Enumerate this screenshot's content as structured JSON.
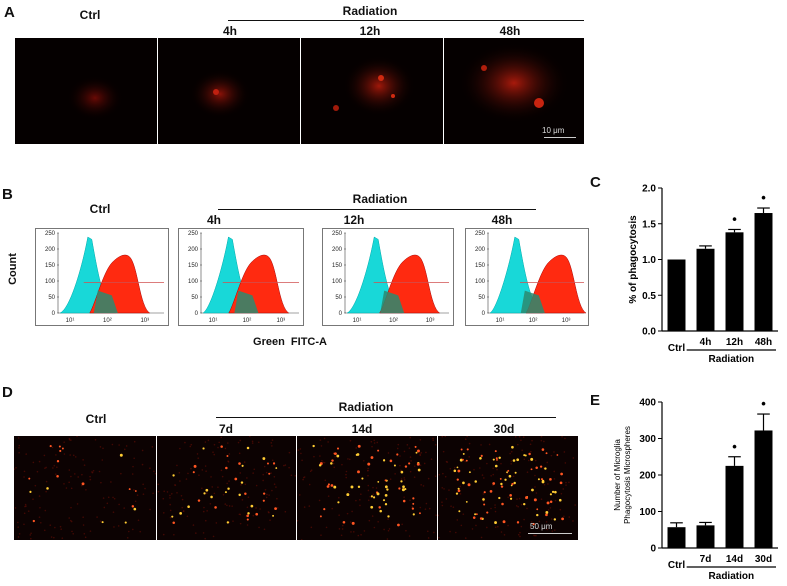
{
  "panel_A": {
    "label": "A",
    "group_label": "Radiation",
    "ctrl_label": "Ctrl",
    "timepoints": [
      "4h",
      "12h",
      "48h"
    ],
    "scale_label": "10 μm"
  },
  "panel_B": {
    "label": "B",
    "group_label": "Radiation",
    "ctrl_label": "Ctrl",
    "timepoints": [
      "4h",
      "12h",
      "48h"
    ],
    "y_label": "Count",
    "x_label": "Green  FITC-A",
    "y_ticks": [
      "250",
      "200",
      "150",
      "100",
      "50",
      "0"
    ],
    "x_ticks": [
      "10¹",
      "10²",
      "10³"
    ],
    "colors": {
      "control_histogram": "#18d8d8",
      "treated_histogram": "#ff2a10"
    }
  },
  "panel_D": {
    "label": "D",
    "group_label": "Radiation",
    "ctrl_label": "Ctrl",
    "timepoints": [
      "7d",
      "14d",
      "30d"
    ],
    "scale_label": "50 μm"
  },
  "chart_data": [
    {
      "panel": "C",
      "type": "bar",
      "categories": [
        "Ctrl",
        "4h",
        "12h",
        "48h"
      ],
      "values": [
        1.0,
        1.15,
        1.38,
        1.65
      ],
      "errors": [
        0.0,
        0.04,
        0.04,
        0.07
      ],
      "significant": [
        false,
        false,
        true,
        true
      ],
      "marker": "•",
      "ylabel": "% of phagocytosis",
      "group_label": "Radiation",
      "ylim": [
        0,
        2.0
      ],
      "yticks": [
        "0.0",
        "0.5",
        "1.0",
        "1.5",
        "2.0"
      ],
      "bar_color": "#000000"
    },
    {
      "panel": "E",
      "type": "bar",
      "categories": [
        "Ctrl",
        "7d",
        "14d",
        "30d"
      ],
      "values": [
        57,
        62,
        225,
        322
      ],
      "errors": [
        12,
        8,
        25,
        45
      ],
      "significant": [
        false,
        false,
        true,
        true
      ],
      "marker": "•",
      "ylabel_lines": [
        "Number of Microglia",
        "Phagocytosis Microspheres"
      ],
      "group_label": "Radiation",
      "ylim": [
        0,
        400
      ],
      "yticks": [
        "0",
        "100",
        "200",
        "300",
        "400"
      ],
      "bar_color": "#000000"
    }
  ]
}
